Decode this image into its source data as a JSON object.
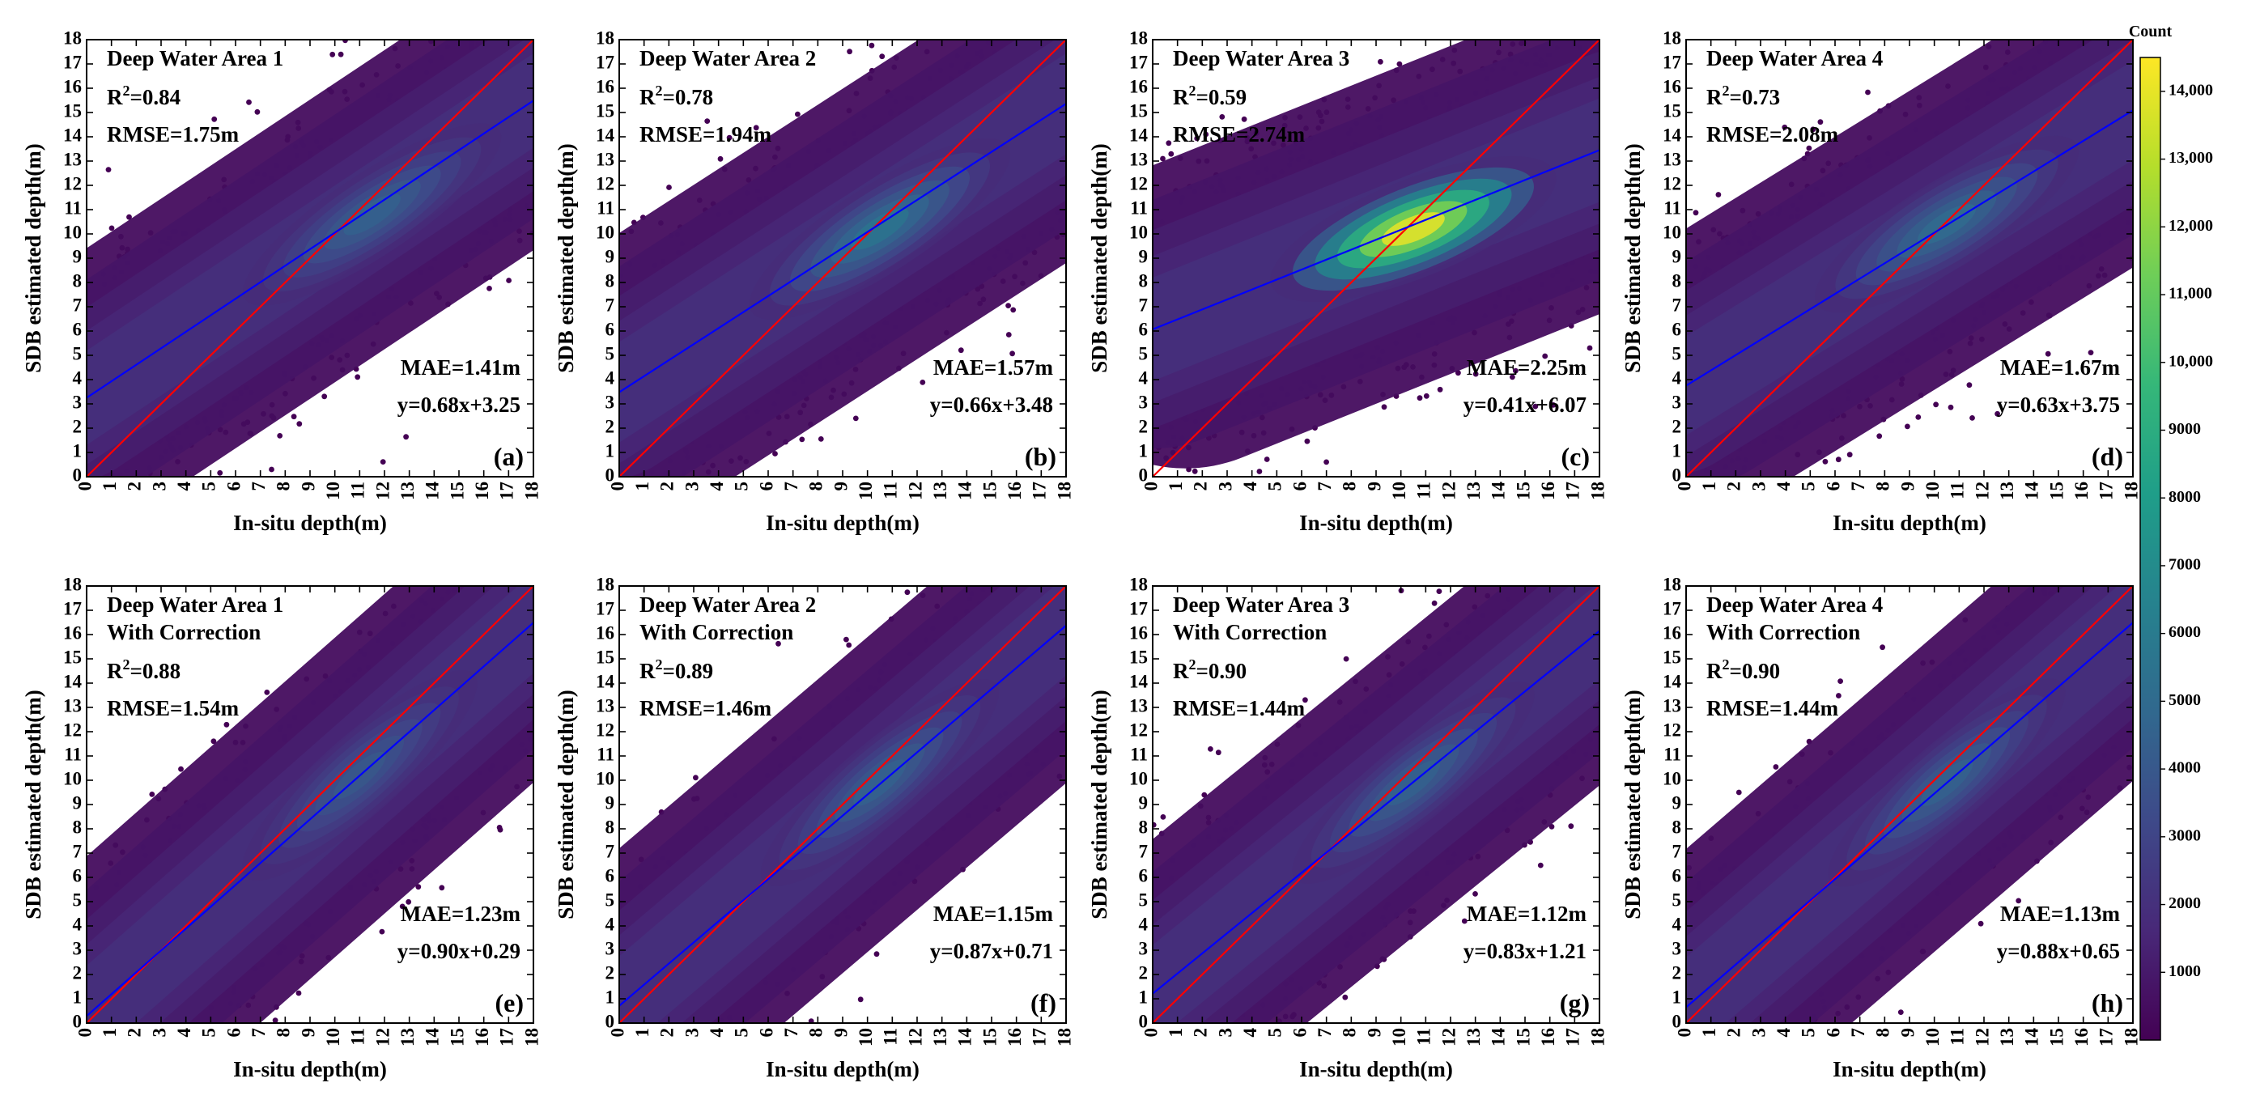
{
  "figure": {
    "x_axis_label": "In-situ depth(m)",
    "y_axis_label": "SDB estimated depth(m)",
    "colorbar": {
      "title": "Count",
      "ticks": [
        "1000",
        "2000",
        "3000",
        "4000",
        "5000",
        "6000",
        "7000",
        "8000",
        "9000",
        "10,000",
        "11,000",
        "12,000",
        "13,000",
        "14,000"
      ],
      "tick_values": [
        1000,
        2000,
        3000,
        4000,
        5000,
        6000,
        7000,
        8000,
        9000,
        10000,
        11000,
        12000,
        13000,
        14000
      ],
      "range": [
        0,
        14500
      ],
      "colormap": [
        "#440154",
        "#482878",
        "#3e4989",
        "#31688e",
        "#26828e",
        "#1f9e89",
        "#35b779",
        "#6ece58",
        "#b5de2b",
        "#fde725"
      ]
    },
    "colors": {
      "identity_line": "#ff0000",
      "fit_line": "#0000ff",
      "frame": "#000000"
    }
  },
  "chart_data": [
    {
      "type": "scatter",
      "panel": "(a)",
      "title": "Deep Water Area 1",
      "subtitle": "",
      "r2_label": "R",
      "r2_value": "=0.84",
      "rmse": "RMSE=1.75m",
      "mae": "MAE=1.41m",
      "equation": "y=0.68x+3.25",
      "slope": 0.68,
      "intercept": 3.25,
      "xlabel": "In-situ depth(m)",
      "ylabel": "SDB estimated depth(m)",
      "xlim": [
        0,
        18
      ],
      "ylim": [
        0,
        18
      ],
      "ticks": [
        0,
        1,
        2,
        3,
        4,
        5,
        6,
        7,
        8,
        9,
        10,
        11,
        12,
        13,
        14,
        15,
        16,
        17,
        18
      ],
      "spread": 2.7,
      "peak_center": [
        11.5,
        10.8
      ],
      "peak_count": 4500
    },
    {
      "type": "scatter",
      "panel": "(b)",
      "title": "Deep Water Area 2",
      "subtitle": "",
      "r2_label": "R",
      "r2_value": "=0.78",
      "rmse": "RMSE=1.94m",
      "mae": "MAE=1.57m",
      "equation": "y=0.66x+3.48",
      "slope": 0.66,
      "intercept": 3.48,
      "xlabel": "In-situ depth(m)",
      "ylabel": "SDB estimated depth(m)",
      "xlim": [
        0,
        18
      ],
      "ylim": [
        0,
        18
      ],
      "ticks": [
        0,
        1,
        2,
        3,
        4,
        5,
        6,
        7,
        8,
        9,
        10,
        11,
        12,
        13,
        14,
        15,
        16,
        17,
        18
      ],
      "spread": 2.9,
      "peak_center": [
        10.5,
        10.2
      ],
      "peak_count": 5500
    },
    {
      "type": "scatter",
      "panel": "(c)",
      "title": "Deep Water Area 3",
      "subtitle": "",
      "r2_label": "R",
      "r2_value": "=0.59",
      "rmse": "RMSE=2.74m",
      "mae": "MAE=2.25m",
      "equation": "y=0.41x+6.07",
      "slope": 0.41,
      "intercept": 6.07,
      "xlabel": "In-situ depth(m)",
      "ylabel": "SDB estimated depth(m)",
      "xlim": [
        0,
        18
      ],
      "ylim": [
        0,
        18
      ],
      "ticks": [
        0,
        1,
        2,
        3,
        4,
        5,
        6,
        7,
        8,
        9,
        10,
        11,
        12,
        13,
        14,
        15,
        16,
        17,
        18
      ],
      "spread": 3.3,
      "peak_center": [
        10.5,
        10.2
      ],
      "peak_count": 14000
    },
    {
      "type": "scatter",
      "panel": "(d)",
      "title": "Deep Water Area 4",
      "subtitle": "",
      "r2_label": "R",
      "r2_value": "=0.73",
      "rmse": "RMSE=2.08m",
      "mae": "MAE=1.67m",
      "equation": "y=0.63x+3.75",
      "slope": 0.63,
      "intercept": 3.75,
      "xlabel": "In-situ depth(m)",
      "ylabel": "SDB estimated depth(m)",
      "xlim": [
        0,
        18
      ],
      "ylim": [
        0,
        18
      ],
      "ticks": [
        0,
        1,
        2,
        3,
        4,
        5,
        6,
        7,
        8,
        9,
        10,
        11,
        12,
        13,
        14,
        15,
        16,
        17,
        18
      ],
      "spread": 2.9,
      "peak_center": [
        10.5,
        10.4
      ],
      "peak_count": 5000
    },
    {
      "type": "scatter",
      "panel": "(e)",
      "title": "Deep Water Area 1",
      "subtitle": "With Correction",
      "r2_label": "R",
      "r2_value": "=0.88",
      "rmse": "RMSE=1.54m",
      "mae": "MAE=1.23m",
      "equation": "y=0.90x+0.29",
      "slope": 0.9,
      "intercept": 0.29,
      "xlabel": "In-situ depth(m)",
      "ylabel": "SDB estimated depth(m)",
      "xlim": [
        0,
        18
      ],
      "ylim": [
        0,
        18
      ],
      "ticks": [
        0,
        1,
        2,
        3,
        4,
        5,
        6,
        7,
        8,
        9,
        10,
        11,
        12,
        13,
        14,
        15,
        16,
        17,
        18
      ],
      "spread": 2.6,
      "peak_center": [
        11.0,
        10.2
      ],
      "peak_count": 4000
    },
    {
      "type": "scatter",
      "panel": "(f)",
      "title": "Deep Water Area 2",
      "subtitle": "With Correction",
      "r2_label": "R",
      "r2_value": "=0.89",
      "rmse": "RMSE=1.46m",
      "mae": "MAE=1.15m",
      "equation": "y=0.87x+0.71",
      "slope": 0.87,
      "intercept": 0.71,
      "xlabel": "In-situ depth(m)",
      "ylabel": "SDB estimated depth(m)",
      "xlim": [
        0,
        18
      ],
      "ylim": [
        0,
        18
      ],
      "ticks": [
        0,
        1,
        2,
        3,
        4,
        5,
        6,
        7,
        8,
        9,
        10,
        11,
        12,
        13,
        14,
        15,
        16,
        17,
        18
      ],
      "spread": 2.6,
      "peak_center": [
        10.5,
        9.9
      ],
      "peak_count": 4500
    },
    {
      "type": "scatter",
      "panel": "(g)",
      "title": "Deep Water Area 3",
      "subtitle": "With Correction",
      "r2_label": "R",
      "r2_value": "=0.90",
      "rmse": "RMSE=1.44m",
      "mae": "MAE=1.12m",
      "equation": "y=0.83x+1.21",
      "slope": 0.83,
      "intercept": 1.21,
      "xlabel": "In-situ depth(m)",
      "ylabel": "SDB estimated depth(m)",
      "xlim": [
        0,
        18
      ],
      "ylim": [
        0,
        18
      ],
      "ticks": [
        0,
        1,
        2,
        3,
        4,
        5,
        6,
        7,
        8,
        9,
        10,
        11,
        12,
        13,
        14,
        15,
        16,
        17,
        18
      ],
      "spread": 2.6,
      "peak_center": [
        10.5,
        9.9
      ],
      "peak_count": 4500
    },
    {
      "type": "scatter",
      "panel": "(h)",
      "title": "Deep Water Area 4",
      "subtitle": "With Correction",
      "r2_label": "R",
      "r2_value": "=0.90",
      "rmse": "RMSE=1.44m",
      "mae": "MAE=1.13m",
      "equation": "y=0.88x+0.65",
      "slope": 0.88,
      "intercept": 0.65,
      "xlabel": "In-situ depth(m)",
      "ylabel": "SDB estimated depth(m)",
      "xlim": [
        0,
        18
      ],
      "ylim": [
        0,
        18
      ],
      "ticks": [
        0,
        1,
        2,
        3,
        4,
        5,
        6,
        7,
        8,
        9,
        10,
        11,
        12,
        13,
        14,
        15,
        16,
        17,
        18
      ],
      "spread": 2.6,
      "peak_center": [
        10.5,
        9.9
      ],
      "peak_count": 4500
    }
  ]
}
